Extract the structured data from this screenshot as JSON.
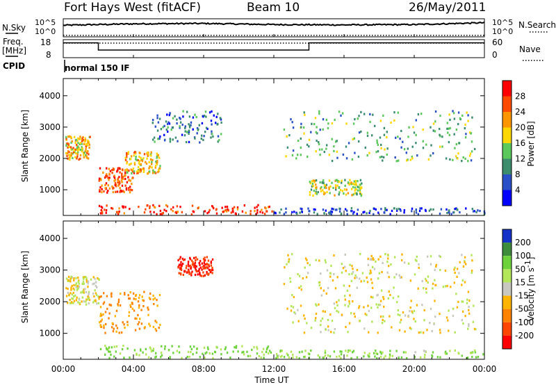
{
  "header": {
    "radar_title": "Fort Hays West (fitACF)",
    "beam": "Beam 10",
    "date": "26/May/2011"
  },
  "noise_panel": {
    "left_label": "N.Sky",
    "right_label": "N.Search",
    "left_ticks": [
      "10^5",
      "10^0"
    ],
    "right_ticks": [
      "10^5",
      "10^0"
    ]
  },
  "freq_panel": {
    "left_label_1": "Freq.",
    "left_label_2": "[MHz]",
    "right_label": "Nave",
    "left_ticks": [
      "18",
      "8"
    ],
    "right_ticks": [
      "60",
      "0"
    ],
    "freq_segments": [
      {
        "t_start": 0.0,
        "t_end": 2.0,
        "freq_mhz": 16.2
      },
      {
        "t_start": 2.0,
        "t_end": 14.0,
        "freq_mhz": 11.0
      },
      {
        "t_start": 14.0,
        "t_end": 24.0,
        "freq_mhz": 16.2
      }
    ]
  },
  "cpid": {
    "label": "CPID",
    "program": "normal 150 IF"
  },
  "time_axis": {
    "label": "Time UT",
    "ticks": [
      "00:00",
      "04:00",
      "08:00",
      "12:00",
      "16:00",
      "20:00",
      "00:00"
    ],
    "range_hours": [
      0,
      24
    ]
  },
  "range_axis": {
    "label": "Slant Range [km]",
    "ticks": [
      "1000",
      "2000",
      "3000",
      "4000"
    ],
    "range_km": [
      180,
      4550
    ]
  },
  "power_scale": {
    "label": "Power [dB]",
    "tick_labels": [
      "4",
      "8",
      "12",
      "16",
      "20",
      "24",
      "28"
    ],
    "colors": [
      "#0000ff",
      "#2a50c8",
      "#3c8c6e",
      "#5ac85a",
      "#ffd700",
      "#ff9600",
      "#ff4b00",
      "#ff0000"
    ]
  },
  "velocity_scale": {
    "label": "Velocity [m s",
    "label_exp": "-1",
    "label_end": "]",
    "tick_labels": [
      "200",
      "100",
      "50",
      "15",
      "-15",
      "-50",
      "-100",
      "-200"
    ],
    "colors": [
      "#1432c8",
      "#3c8c3c",
      "#6ed23c",
      "#b4e65a",
      "#c8c8c0",
      "#ffb400",
      "#ff8200",
      "#ff4600",
      "#ff0000"
    ]
  },
  "chart_data": [
    {
      "type": "line",
      "title": "N.Sky / N.Search",
      "series": [
        {
          "name": "N.Sky",
          "x": [
            0,
            4,
            8,
            12,
            16,
            20,
            24
          ],
          "values": [
            3.2,
            3.6,
            3.7,
            3.4,
            3.3,
            3.4,
            3.9
          ]
        },
        {
          "name": "N.Search",
          "x": [
            0,
            24
          ],
          "values": [
            0.4,
            0.4
          ]
        }
      ]
    },
    {
      "type": "line",
      "title": "Freq. [MHz] / Nave",
      "series": [
        {
          "name": "Freq.",
          "x": [
            0,
            2,
            2,
            14,
            14,
            24
          ],
          "values": [
            16.2,
            16.2,
            11.0,
            11.0,
            16.2,
            16.2
          ]
        },
        {
          "name": "Nave",
          "x": [
            0,
            24
          ],
          "values": [
            50,
            50
          ]
        }
      ]
    },
    {
      "type": "heatmap",
      "title": "Power [dB]",
      "xlabel": "Time UT",
      "ylabel": "Slant Range [km]",
      "xlim": [
        0,
        24
      ],
      "ylim": [
        180,
        4550
      ],
      "zlim": [
        0,
        30
      ],
      "features": [
        {
          "t0": 0.1,
          "t1": 1.5,
          "r0": 1950,
          "r1": 2700,
          "power_db": 20
        },
        {
          "t0": 2.0,
          "t1": 4.0,
          "r0": 900,
          "r1": 1700,
          "power_db": 26
        },
        {
          "t0": 3.5,
          "t1": 5.5,
          "r0": 1500,
          "r1": 2200,
          "power_db": 20
        },
        {
          "t0": 2.0,
          "t1": 12.0,
          "r0": 200,
          "r1": 500,
          "power_db": 28
        },
        {
          "t0": 5.0,
          "t1": 9.0,
          "r0": 2500,
          "r1": 3500,
          "power_db": 8
        },
        {
          "t0": 14.0,
          "t1": 17.0,
          "r0": 800,
          "r1": 1300,
          "power_db": 16
        },
        {
          "t0": 12.5,
          "t1": 23.5,
          "r0": 1900,
          "r1": 3500,
          "power_db": 12
        },
        {
          "t0": 12.0,
          "t1": 24.0,
          "r0": 200,
          "r1": 400,
          "power_db": 6
        }
      ]
    },
    {
      "type": "heatmap",
      "title": "Velocity [m s-1]",
      "xlabel": "Time UT",
      "ylabel": "Slant Range [km]",
      "xlim": [
        0,
        24
      ],
      "ylim": [
        180,
        4550
      ],
      "zlim": [
        -200,
        200
      ],
      "features": [
        {
          "t0": 0.1,
          "t1": 2.0,
          "r0": 1900,
          "r1": 2800,
          "velocity_ms": 0
        },
        {
          "t0": 2.0,
          "t1": 5.5,
          "r0": 1000,
          "r1": 2300,
          "velocity_ms": -40
        },
        {
          "t0": 6.5,
          "t1": 8.5,
          "r0": 2800,
          "r1": 3400,
          "velocity_ms": -150
        },
        {
          "t0": 2.0,
          "t1": 12.0,
          "r0": 200,
          "r1": 600,
          "velocity_ms": 40
        },
        {
          "t0": 12.5,
          "t1": 23.5,
          "r0": 1000,
          "r1": 3500,
          "velocity_ms": 0
        },
        {
          "t0": 12.0,
          "t1": 24.0,
          "r0": 200,
          "r1": 450,
          "velocity_ms": 30
        }
      ]
    }
  ]
}
